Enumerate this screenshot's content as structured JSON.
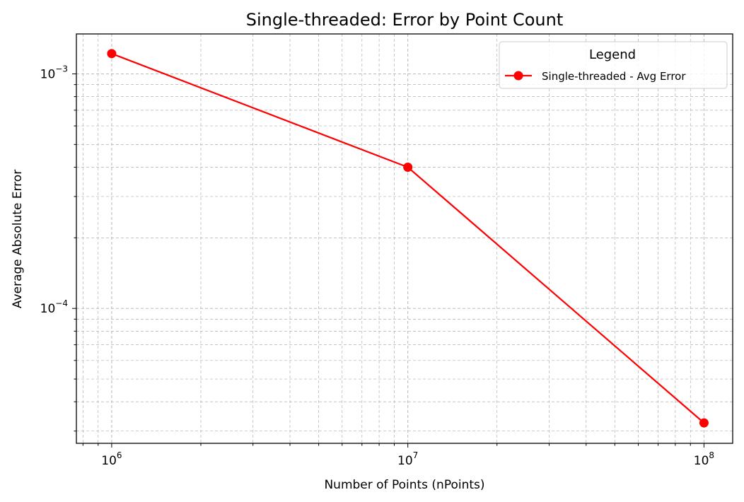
{
  "chart_data": {
    "type": "line",
    "title": "Single-threaded: Error by Point Count",
    "xlabel": "Number of Points (nPoints)",
    "ylabel": "Average Absolute Error",
    "xscale": "log",
    "yscale": "log",
    "xlim": [
      760000,
      125000000
    ],
    "ylim": [
      2.66e-05,
      0.00148
    ],
    "grid": true,
    "legend_title": "Legend",
    "legend_position": "top-right",
    "series": [
      {
        "name": "Single-threaded - Avg Error",
        "color": "#ff0000",
        "marker": "circle",
        "x": [
          1000000,
          10000000,
          100000000
        ],
        "y": [
          0.00122,
          0.0004,
          3.25e-05
        ]
      }
    ],
    "x_ticks": [
      {
        "base": "10",
        "exp": "6",
        "value": 1000000
      },
      {
        "base": "10",
        "exp": "7",
        "value": 10000000
      },
      {
        "base": "10",
        "exp": "8",
        "value": 100000000
      }
    ],
    "y_ticks": [
      {
        "base": "10",
        "exp": "−4",
        "value": 0.0001
      },
      {
        "base": "10",
        "exp": "−3",
        "value": 0.001
      }
    ]
  }
}
